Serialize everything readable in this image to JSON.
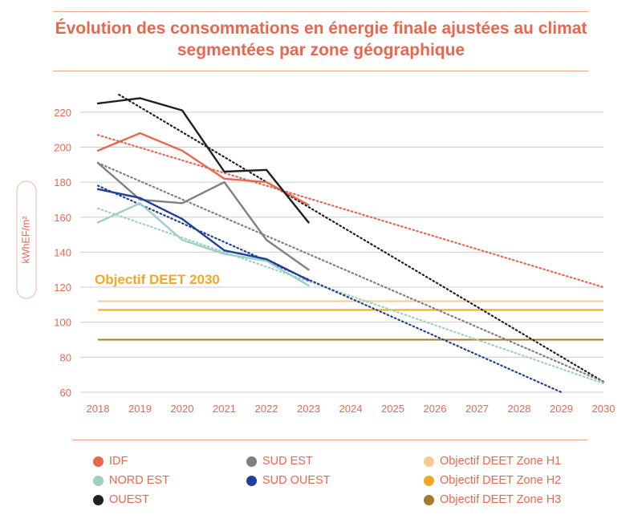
{
  "chart_data": {
    "type": "line",
    "title_line1": "Évolution des consommations en énergie finale ajustées au climat",
    "title_line2": "segmentées par zone géographique",
    "ylabel": "kWhEF/m²",
    "ylim": [
      60,
      230
    ],
    "xlim": [
      2018,
      2030
    ],
    "x": [
      2018,
      2019,
      2020,
      2021,
      2022,
      2023,
      2024,
      2025,
      2026,
      2027,
      2028,
      2029,
      2030
    ],
    "x_tick_labels": [
      "2018",
      "2019",
      "2020",
      "2021",
      "2022",
      "2023",
      "2024",
      "2025",
      "2026",
      "2027",
      "2028",
      "2029",
      "2030"
    ],
    "y_ticks": [
      60,
      80,
      100,
      120,
      140,
      160,
      180,
      200,
      220
    ],
    "y_tick_labels": [
      "60",
      "80",
      "100",
      "120",
      "140",
      "160",
      "180",
      "200",
      "220"
    ],
    "annotation": "Objectif DEET 2030",
    "series": [
      {
        "name": "IDF",
        "color": "#e8674f",
        "x": [
          2018,
          2019,
          2020,
          2021,
          2022,
          2023
        ],
        "values": [
          198,
          208,
          198,
          182,
          180,
          167
        ],
        "trend": {
          "x": [
            2018,
            2030
          ],
          "values": [
            207,
            120
          ]
        }
      },
      {
        "name": "NORD EST",
        "color": "#9fcfc4",
        "x": [
          2018,
          2019,
          2020,
          2021,
          2022,
          2023
        ],
        "values": [
          157,
          168,
          147,
          139,
          135,
          121
        ],
        "trend": {
          "x": [
            2018,
            2030
          ],
          "values": [
            165,
            65
          ]
        }
      },
      {
        "name": "OUEST",
        "color": "#1f1f1f",
        "x": [
          2018,
          2019,
          2020,
          2021,
          2022,
          2023
        ],
        "values": [
          225,
          228,
          221,
          186,
          187,
          157
        ],
        "trend": {
          "x": [
            2018.5,
            2030
          ],
          "values": [
            230,
            66
          ]
        }
      },
      {
        "name": "SUD EST",
        "color": "#7f7f7f",
        "x": [
          2018,
          2019,
          2020,
          2021,
          2022,
          2023
        ],
        "values": [
          191,
          170,
          168,
          180,
          147,
          130
        ],
        "trend": {
          "x": [
            2018,
            2030
          ],
          "values": [
            191,
            66
          ]
        }
      },
      {
        "name": "SUD OUEST",
        "color": "#1f3f99",
        "x": [
          2018,
          2019,
          2020,
          2021,
          2022,
          2023
        ],
        "values": [
          176,
          171,
          159,
          141,
          136,
          124
        ],
        "trend": {
          "x": [
            2018,
            2029
          ],
          "values": [
            178,
            60
          ]
        }
      }
    ],
    "targets": [
      {
        "name": "Objectif DEET Zone H1",
        "color": "#f9c98f",
        "value": 112
      },
      {
        "name": "Objectif DEET Zone H2",
        "color": "#f5a623",
        "value": 107
      },
      {
        "name": "Objectif DEET Zone H3",
        "color": "#a67a2a",
        "value": 90
      }
    ],
    "grid_color": "#cccccc",
    "accent_color": "#e8674f",
    "legend_placement": "bottom"
  }
}
